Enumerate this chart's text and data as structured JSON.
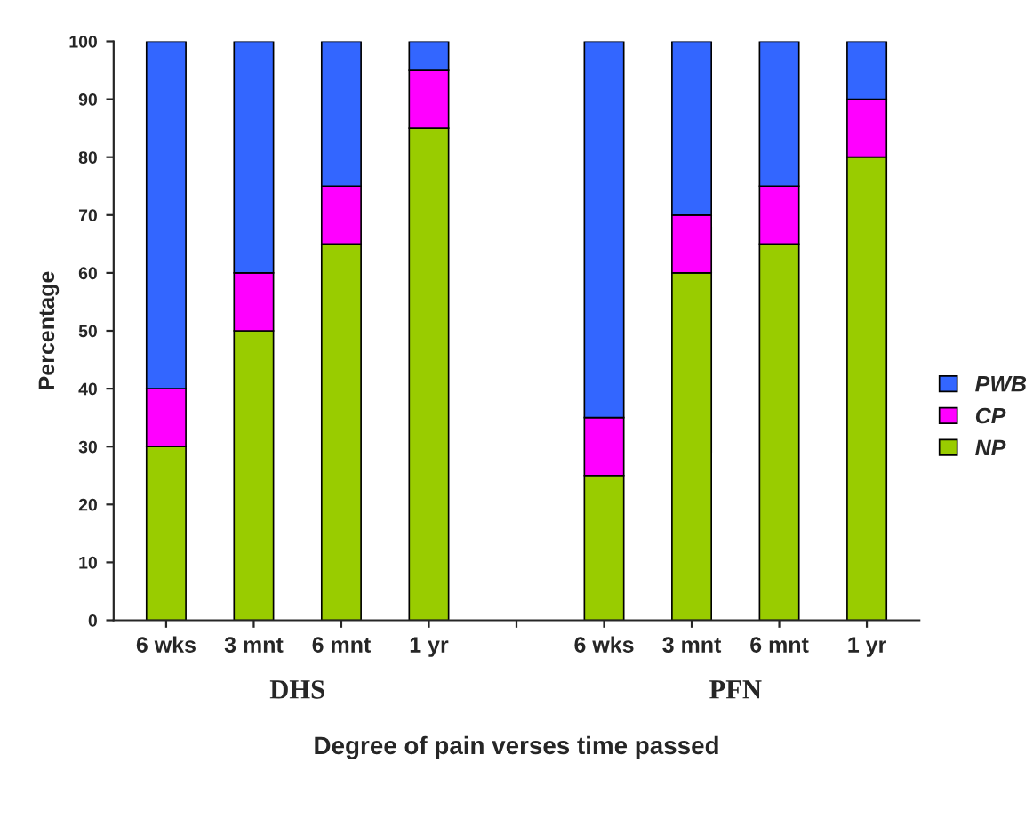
{
  "chart_data": {
    "type": "bar",
    "stacked": true,
    "categories": [
      "6 wks",
      "3 mnt",
      "6 mnt",
      "1 yr",
      null,
      "6 wks",
      "3 mnt",
      "6 mnt",
      "1 yr"
    ],
    "series": [
      {
        "name": "NP",
        "color": "#99cc00",
        "values": [
          30,
          50,
          65,
          85,
          null,
          25,
          60,
          65,
          80
        ]
      },
      {
        "name": "CP",
        "color": "#ff00ff",
        "values": [
          10,
          10,
          10,
          10,
          null,
          10,
          10,
          10,
          10
        ]
      },
      {
        "name": "PWB",
        "color": "#3366ff",
        "values": [
          60,
          40,
          25,
          5,
          null,
          65,
          30,
          25,
          10
        ]
      }
    ],
    "ylabel": "Percentage",
    "xlabel": "Degree of pain verses time passed",
    "annotations": [
      "DHS",
      "PFN"
    ],
    "ylim": [
      0,
      100
    ],
    "yticks": [
      0,
      10,
      20,
      30,
      40,
      50,
      60,
      70,
      80,
      90,
      100
    ],
    "grid": false,
    "legend": "right"
  }
}
